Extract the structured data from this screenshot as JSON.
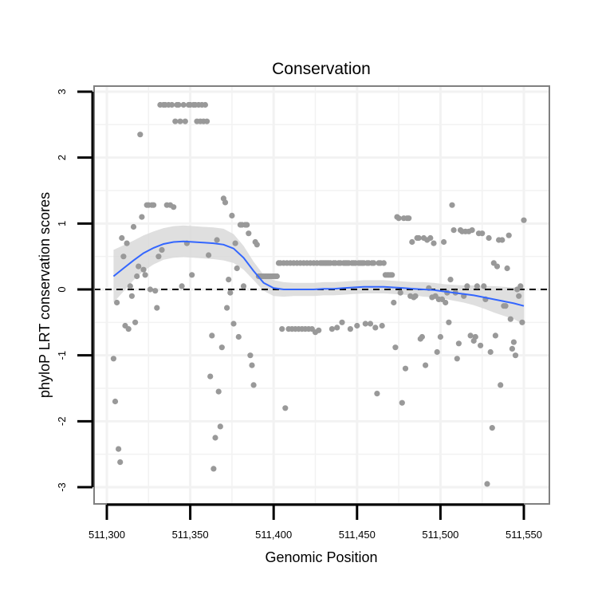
{
  "chart_data": {
    "type": "scatter",
    "title": "Conservation",
    "xlabel": "Genomic Position",
    "ylabel": "phyloP LRT conservation scores",
    "xlim": [
      511295,
      511560
    ],
    "ylim": [
      -3.2,
      3.1
    ],
    "x_ticks": [
      511300,
      511350,
      511400,
      511450,
      511500,
      511550
    ],
    "x_tick_labels": [
      "511,300",
      "511,350",
      "511,400",
      "511,450",
      "511,500",
      "511,550"
    ],
    "y_ticks": [
      3,
      2,
      1,
      0,
      -1,
      -2,
      -3
    ],
    "y_tick_labels": [
      "3",
      "2",
      "1",
      "0",
      "-1",
      "-2",
      "-3"
    ],
    "reference_line": {
      "y": 0,
      "style": "dashed"
    },
    "grid": true,
    "colors": {
      "points": "#999999",
      "smooth": "#3366ff",
      "band": "#d9d9d9",
      "panel_border": "#808080",
      "grid": "#f2f2f2"
    },
    "points": [
      [
        511304,
        -1.05
      ],
      [
        511305,
        -1.7
      ],
      [
        511306,
        -0.2
      ],
      [
        511307,
        -2.42
      ],
      [
        511308,
        -2.62
      ],
      [
        511309,
        0.78
      ],
      [
        511310,
        0.5
      ],
      [
        511311,
        -0.55
      ],
      [
        511312,
        0.7
      ],
      [
        511313,
        -0.6
      ],
      [
        511314,
        0.05
      ],
      [
        511315,
        -0.1
      ],
      [
        511316,
        0.95
      ],
      [
        511317,
        -0.5
      ],
      [
        511318,
        0.2
      ],
      [
        511319,
        0.35
      ],
      [
        511320,
        2.35
      ],
      [
        511321,
        1.1
      ],
      [
        511322,
        0.3
      ],
      [
        511323,
        0.22
      ],
      [
        511324,
        1.28
      ],
      [
        511325,
        1.28
      ],
      [
        511326,
        0.0
      ],
      [
        511327,
        1.28
      ],
      [
        511328,
        1.28
      ],
      [
        511329,
        -0.02
      ],
      [
        511330,
        -0.28
      ],
      [
        511331,
        0.5
      ],
      [
        511332,
        2.8
      ],
      [
        511333,
        0.6
      ],
      [
        511334,
        2.8
      ],
      [
        511335,
        2.8
      ],
      [
        511336,
        1.28
      ],
      [
        511337,
        2.8
      ],
      [
        511338,
        1.28
      ],
      [
        511339,
        2.8
      ],
      [
        511340,
        1.25
      ],
      [
        511341,
        2.55
      ],
      [
        511342,
        2.8
      ],
      [
        511343,
        2.8
      ],
      [
        511344,
        2.55
      ],
      [
        511345,
        0.05
      ],
      [
        511346,
        2.8
      ],
      [
        511347,
        2.55
      ],
      [
        511348,
        0.7
      ],
      [
        511349,
        2.8
      ],
      [
        511350,
        2.8
      ],
      [
        511351,
        0.22
      ],
      [
        511352,
        2.8
      ],
      [
        511353,
        2.8
      ],
      [
        511354,
        2.55
      ],
      [
        511355,
        2.8
      ],
      [
        511356,
        2.55
      ],
      [
        511357,
        2.8
      ],
      [
        511358,
        2.55
      ],
      [
        511359,
        2.8
      ],
      [
        511360,
        2.55
      ],
      [
        511361,
        0.52
      ],
      [
        511362,
        -1.32
      ],
      [
        511363,
        -0.7
      ],
      [
        511364,
        -2.72
      ],
      [
        511365,
        -2.25
      ],
      [
        511366,
        0.75
      ],
      [
        511367,
        -1.55
      ],
      [
        511368,
        -2.08
      ],
      [
        511369,
        -0.88
      ],
      [
        511370,
        1.38
      ],
      [
        511371,
        1.32
      ],
      [
        511372,
        -0.28
      ],
      [
        511373,
        0.15
      ],
      [
        511374,
        -0.05
      ],
      [
        511375,
        1.12
      ],
      [
        511376,
        -0.52
      ],
      [
        511377,
        0.7
      ],
      [
        511378,
        0.32
      ],
      [
        511379,
        -0.72
      ],
      [
        511380,
        0.98
      ],
      [
        511381,
        0.98
      ],
      [
        511382,
        0.05
      ],
      [
        511383,
        0.98
      ],
      [
        511384,
        0.98
      ],
      [
        511385,
        0.85
      ],
      [
        511386,
        -1.0
      ],
      [
        511387,
        -1.15
      ],
      [
        511388,
        -1.45
      ],
      [
        511389,
        0.72
      ],
      [
        511390,
        0.68
      ],
      [
        511391,
        0.2
      ],
      [
        511392,
        0.2
      ],
      [
        511393,
        0.2
      ],
      [
        511394,
        0.2
      ],
      [
        511395,
        0.2
      ],
      [
        511396,
        0.2
      ],
      [
        511397,
        0.2
      ],
      [
        511398,
        0.2
      ],
      [
        511399,
        0.2
      ],
      [
        511400,
        0.2
      ],
      [
        511401,
        0.2
      ],
      [
        511402,
        0.2
      ],
      [
        511403,
        0.4
      ],
      [
        511404,
        0.4
      ],
      [
        511405,
        -0.6
      ],
      [
        511406,
        0.4
      ],
      [
        511407,
        -1.8
      ],
      [
        511408,
        0.4
      ],
      [
        511409,
        -0.6
      ],
      [
        511410,
        0.4
      ],
      [
        511411,
        -0.6
      ],
      [
        511412,
        0.4
      ],
      [
        511413,
        -0.6
      ],
      [
        511414,
        0.4
      ],
      [
        511415,
        -0.6
      ],
      [
        511416,
        0.4
      ],
      [
        511417,
        -0.6
      ],
      [
        511418,
        0.4
      ],
      [
        511419,
        -0.6
      ],
      [
        511420,
        0.4
      ],
      [
        511421,
        -0.6
      ],
      [
        511422,
        0.4
      ],
      [
        511423,
        -0.6
      ],
      [
        511424,
        0.4
      ],
      [
        511425,
        -0.65
      ],
      [
        511426,
        0.4
      ],
      [
        511427,
        -0.62
      ],
      [
        511428,
        0.4
      ],
      [
        511429,
        0.4
      ],
      [
        511430,
        0.4
      ],
      [
        511431,
        0.4
      ],
      [
        511432,
        0.4
      ],
      [
        511433,
        0.4
      ],
      [
        511434,
        0.4
      ],
      [
        511435,
        -0.6
      ],
      [
        511436,
        0.4
      ],
      [
        511437,
        0.4
      ],
      [
        511438,
        -0.58
      ],
      [
        511439,
        0.4
      ],
      [
        511440,
        0.4
      ],
      [
        511441,
        -0.5
      ],
      [
        511442,
        0.4
      ],
      [
        511443,
        0.4
      ],
      [
        511444,
        0.4
      ],
      [
        511445,
        0.4
      ],
      [
        511446,
        -0.6
      ],
      [
        511447,
        0.4
      ],
      [
        511448,
        0.4
      ],
      [
        511449,
        0.4
      ],
      [
        511450,
        -0.55
      ],
      [
        511451,
        0.4
      ],
      [
        511452,
        0.4
      ],
      [
        511453,
        0.4
      ],
      [
        511454,
        0.4
      ],
      [
        511455,
        -0.52
      ],
      [
        511456,
        0.4
      ],
      [
        511457,
        0.4
      ],
      [
        511458,
        -0.52
      ],
      [
        511459,
        0.4
      ],
      [
        511460,
        0.4
      ],
      [
        511461,
        -0.58
      ],
      [
        511462,
        -1.58
      ],
      [
        511463,
        0.4
      ],
      [
        511464,
        0.4
      ],
      [
        511465,
        -0.55
      ],
      [
        511466,
        0.4
      ],
      [
        511467,
        0.22
      ],
      [
        511468,
        0.22
      ],
      [
        511469,
        0.22
      ],
      [
        511470,
        0.22
      ],
      [
        511471,
        0.22
      ],
      [
        511472,
        -0.2
      ],
      [
        511473,
        -0.88
      ],
      [
        511474,
        1.1
      ],
      [
        511475,
        1.08
      ],
      [
        511476,
        -0.05
      ],
      [
        511477,
        -1.72
      ],
      [
        511478,
        1.08
      ],
      [
        511479,
        -1.2
      ],
      [
        511480,
        1.08
      ],
      [
        511481,
        1.08
      ],
      [
        511482,
        -0.1
      ],
      [
        511483,
        0.72
      ],
      [
        511484,
        -0.12
      ],
      [
        511485,
        -0.1
      ],
      [
        511486,
        0.78
      ],
      [
        511487,
        0.78
      ],
      [
        511488,
        -0.75
      ],
      [
        511489,
        -0.72
      ],
      [
        511490,
        0.78
      ],
      [
        511491,
        -1.15
      ],
      [
        511492,
        0.75
      ],
      [
        511493,
        0.02
      ],
      [
        511494,
        0.78
      ],
      [
        511495,
        -0.12
      ],
      [
        511496,
        0.7
      ],
      [
        511497,
        -0.1
      ],
      [
        511498,
        -0.95
      ],
      [
        511499,
        -0.15
      ],
      [
        511500,
        -0.72
      ],
      [
        511501,
        -0.15
      ],
      [
        511502,
        0.72
      ],
      [
        511503,
        -0.2
      ],
      [
        511504,
        -0.05
      ],
      [
        511505,
        -0.5
      ],
      [
        511506,
        0.15
      ],
      [
        511507,
        1.28
      ],
      [
        511508,
        0.9
      ],
      [
        511509,
        -0.05
      ],
      [
        511510,
        -1.05
      ],
      [
        511511,
        -0.82
      ],
      [
        511512,
        0.9
      ],
      [
        511513,
        0.88
      ],
      [
        511514,
        -0.1
      ],
      [
        511515,
        0.88
      ],
      [
        511516,
        0.05
      ],
      [
        511517,
        0.88
      ],
      [
        511518,
        -0.7
      ],
      [
        511519,
        0.9
      ],
      [
        511520,
        -0.78
      ],
      [
        511521,
        -0.72
      ],
      [
        511522,
        0.05
      ],
      [
        511523,
        0.85
      ],
      [
        511524,
        -0.85
      ],
      [
        511525,
        0.85
      ],
      [
        511526,
        0.05
      ],
      [
        511527,
        -0.15
      ],
      [
        511528,
        -2.95
      ],
      [
        511529,
        0.78
      ],
      [
        511530,
        -0.95
      ],
      [
        511531,
        -2.1
      ],
      [
        511532,
        0.4
      ],
      [
        511533,
        -0.7
      ],
      [
        511534,
        0.35
      ],
      [
        511535,
        0.75
      ],
      [
        511536,
        -1.45
      ],
      [
        511537,
        0.75
      ],
      [
        511538,
        -0.25
      ],
      [
        511539,
        -0.25
      ],
      [
        511540,
        0.32
      ],
      [
        511541,
        0.82
      ],
      [
        511542,
        -0.45
      ],
      [
        511543,
        -0.9
      ],
      [
        511544,
        -0.8
      ],
      [
        511545,
        -1.0
      ],
      [
        511546,
        0.0
      ],
      [
        511547,
        -0.1
      ],
      [
        511548,
        0.05
      ],
      [
        511549,
        -0.5
      ],
      [
        511550,
        1.05
      ]
    ],
    "smooth": {
      "x": [
        511304,
        511310,
        511316,
        511322,
        511328,
        511334,
        511340,
        511346,
        511352,
        511358,
        511364,
        511370,
        511376,
        511382,
        511388,
        511394,
        511400,
        511406,
        511412,
        511418,
        511424,
        511430,
        511436,
        511442,
        511448,
        511454,
        511460,
        511466,
        511472,
        511478,
        511484,
        511490,
        511496,
        511502,
        511508,
        511514,
        511520,
        511526,
        511532,
        511538,
        511544,
        511550
      ],
      "y": [
        0.2,
        0.32,
        0.44,
        0.55,
        0.63,
        0.69,
        0.72,
        0.73,
        0.72,
        0.71,
        0.7,
        0.68,
        0.62,
        0.48,
        0.28,
        0.1,
        0.02,
        0.0,
        0.0,
        0.0,
        0.0,
        0.01,
        0.01,
        0.02,
        0.03,
        0.04,
        0.04,
        0.04,
        0.03,
        0.02,
        0.01,
        0.0,
        -0.01,
        -0.03,
        -0.05,
        -0.07,
        -0.09,
        -0.12,
        -0.15,
        -0.18,
        -0.21,
        -0.25
      ],
      "upper": [
        0.6,
        0.67,
        0.74,
        0.82,
        0.88,
        0.93,
        0.96,
        0.97,
        0.96,
        0.95,
        0.94,
        0.92,
        0.84,
        0.66,
        0.42,
        0.22,
        0.14,
        0.11,
        0.1,
        0.1,
        0.1,
        0.11,
        0.11,
        0.12,
        0.13,
        0.14,
        0.14,
        0.14,
        0.13,
        0.12,
        0.11,
        0.11,
        0.1,
        0.08,
        0.07,
        0.06,
        0.06,
        0.05,
        0.05,
        0.04,
        0.03,
        0.03
      ],
      "lower": [
        -0.2,
        -0.03,
        0.14,
        0.28,
        0.38,
        0.45,
        0.48,
        0.49,
        0.48,
        0.47,
        0.46,
        0.44,
        0.4,
        0.3,
        0.14,
        -0.02,
        -0.1,
        -0.11,
        -0.1,
        -0.1,
        -0.1,
        -0.09,
        -0.09,
        -0.08,
        -0.07,
        -0.06,
        -0.06,
        -0.06,
        -0.07,
        -0.08,
        -0.09,
        -0.11,
        -0.12,
        -0.14,
        -0.17,
        -0.2,
        -0.24,
        -0.29,
        -0.35,
        -0.4,
        -0.45,
        -0.53
      ]
    }
  }
}
